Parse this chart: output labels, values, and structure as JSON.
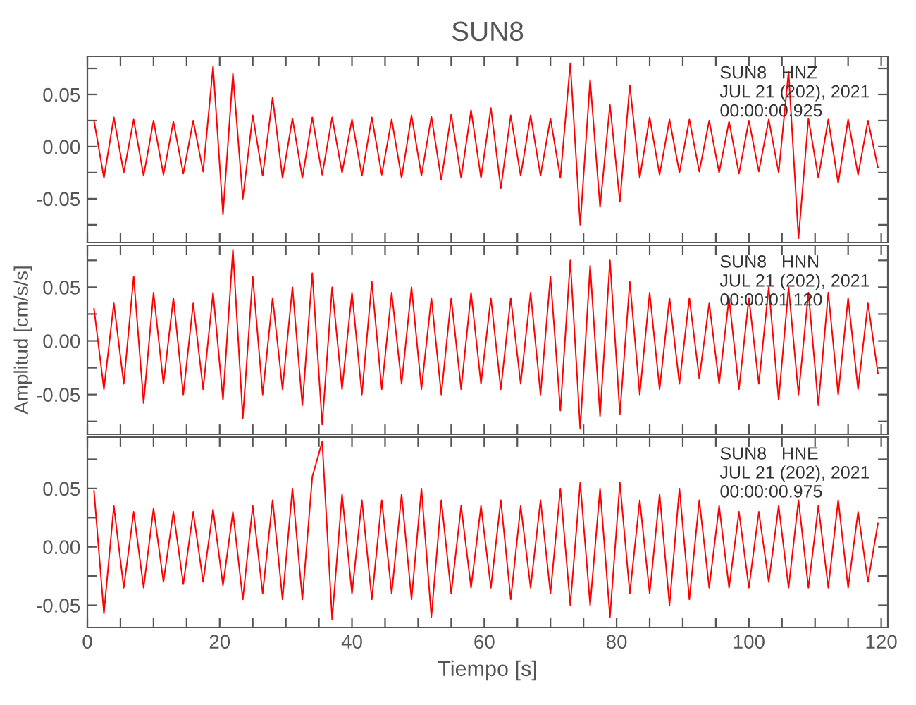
{
  "chart_data": [
    {
      "type": "line",
      "title": "SUN8",
      "annotations": [
        "SUN8   HNZ\nJUL 21 (202), 2021\n00:00:00.925"
      ],
      "tick_labels": "y",
      "xlim": [
        0,
        121
      ],
      "ylim": [
        -0.092,
        0.0865
      ],
      "xticks": [
        {
          "value": 0,
          "label": null
        },
        {
          "value": 5,
          "label": null
        },
        {
          "value": 10,
          "label": null
        },
        {
          "value": 15,
          "label": null
        },
        {
          "value": 20,
          "label": null
        },
        {
          "value": 25,
          "label": null
        },
        {
          "value": 30,
          "label": null
        },
        {
          "value": 35,
          "label": null
        },
        {
          "value": 40,
          "label": null
        },
        {
          "value": 45,
          "label": null
        },
        {
          "value": 50,
          "label": null
        },
        {
          "value": 55,
          "label": null
        },
        {
          "value": 60,
          "label": null
        },
        {
          "value": 65,
          "label": null
        },
        {
          "value": 70,
          "label": null
        },
        {
          "value": 75,
          "label": null
        },
        {
          "value": 80,
          "label": null
        },
        {
          "value": 85,
          "label": null
        },
        {
          "value": 90,
          "label": null
        },
        {
          "value": 95,
          "label": null
        },
        {
          "value": 100,
          "label": null
        },
        {
          "value": 105,
          "label": null
        },
        {
          "value": 110,
          "label": null
        },
        {
          "value": 115,
          "label": null
        },
        {
          "value": 120,
          "label": null
        }
      ],
      "yticks": [
        {
          "value": -0.075,
          "label": null
        },
        {
          "value": -0.05,
          "label": "-0.05"
        },
        {
          "value": -0.025,
          "label": null
        },
        {
          "value": 0,
          "label": "0.00"
        },
        {
          "value": 0.025,
          "label": null
        },
        {
          "value": 0.05,
          "label": "0.05"
        },
        {
          "value": 0.075,
          "label": null
        }
      ],
      "series": [
        {
          "color": "#ff0000",
          "x": [
            1,
            2.5,
            4,
            5.5,
            7,
            8.5,
            10,
            11.5,
            13,
            14.5,
            16,
            17.5,
            19,
            20.5,
            22,
            23.5,
            25,
            26.5,
            28,
            29.5,
            31,
            32.5,
            34,
            35.5,
            37,
            38.5,
            40,
            41.5,
            43,
            44.5,
            46,
            47.5,
            49,
            50.5,
            52,
            53.5,
            55,
            56.5,
            58,
            59.5,
            61,
            62.5,
            64,
            65.5,
            67,
            68.5,
            70,
            71.5,
            73,
            74.5,
            76,
            77.5,
            79,
            80.5,
            82,
            83.5,
            85,
            86.5,
            88,
            89.5,
            91,
            92.5,
            94,
            95.5,
            97,
            98.5,
            100,
            101.5,
            103,
            104.5,
            106,
            107.5,
            109,
            110.5,
            112,
            113.5,
            115,
            116.5,
            118,
            119.5
          ],
          "values": [
            0.025,
            -0.03,
            0.028,
            -0.025,
            0.026,
            -0.028,
            0.025,
            -0.027,
            0.024,
            -0.026,
            0.025,
            -0.024,
            0.077,
            -0.065,
            0.07,
            -0.05,
            0.03,
            -0.028,
            0.047,
            -0.03,
            0.027,
            -0.03,
            0.028,
            -0.027,
            0.028,
            -0.025,
            0.026,
            -0.028,
            0.028,
            -0.027,
            0.026,
            -0.03,
            0.03,
            -0.028,
            0.029,
            -0.032,
            0.031,
            -0.03,
            0.035,
            -0.03,
            0.037,
            -0.04,
            0.03,
            -0.028,
            0.03,
            -0.028,
            0.027,
            -0.03,
            0.08,
            -0.075,
            0.064,
            -0.058,
            0.04,
            -0.053,
            0.059,
            -0.03,
            0.028,
            -0.027,
            0.026,
            -0.025,
            0.026,
            -0.024,
            0.025,
            -0.025,
            0.024,
            -0.026,
            0.025,
            -0.024,
            0.026,
            -0.025,
            0.072,
            -0.088,
            0.027,
            -0.03,
            0.026,
            -0.035,
            0.026,
            -0.027,
            0.025,
            -0.02
          ]
        }
      ]
    },
    {
      "type": "line",
      "ylabel": "Amplitud [cm/s/s]",
      "annotations": [
        "SUN8   HNN\nJUL 21 (202), 2021\n00:00:01.120"
      ],
      "tick_labels": "y",
      "xlim": [
        0,
        121
      ],
      "ylim": [
        -0.087,
        0.089
      ],
      "xticks": [
        {
          "value": 0,
          "label": null
        },
        {
          "value": 5,
          "label": null
        },
        {
          "value": 10,
          "label": null
        },
        {
          "value": 15,
          "label": null
        },
        {
          "value": 20,
          "label": null
        },
        {
          "value": 25,
          "label": null
        },
        {
          "value": 30,
          "label": null
        },
        {
          "value": 35,
          "label": null
        },
        {
          "value": 40,
          "label": null
        },
        {
          "value": 45,
          "label": null
        },
        {
          "value": 50,
          "label": null
        },
        {
          "value": 55,
          "label": null
        },
        {
          "value": 60,
          "label": null
        },
        {
          "value": 65,
          "label": null
        },
        {
          "value": 70,
          "label": null
        },
        {
          "value": 75,
          "label": null
        },
        {
          "value": 80,
          "label": null
        },
        {
          "value": 85,
          "label": null
        },
        {
          "value": 90,
          "label": null
        },
        {
          "value": 95,
          "label": null
        },
        {
          "value": 100,
          "label": null
        },
        {
          "value": 105,
          "label": null
        },
        {
          "value": 110,
          "label": null
        },
        {
          "value": 115,
          "label": null
        },
        {
          "value": 120,
          "label": null
        }
      ],
      "yticks": [
        {
          "value": -0.075,
          "label": null
        },
        {
          "value": -0.05,
          "label": "-0.05"
        },
        {
          "value": -0.025,
          "label": null
        },
        {
          "value": 0,
          "label": "0.00"
        },
        {
          "value": 0.025,
          "label": null
        },
        {
          "value": 0.05,
          "label": "0.05"
        },
        {
          "value": 0.075,
          "label": null
        }
      ],
      "series": [
        {
          "color": "#ff0000",
          "x": [
            1,
            2.5,
            4,
            5.5,
            7,
            8.5,
            10,
            11.5,
            13,
            14.5,
            16,
            17.5,
            19,
            20.5,
            22,
            23.5,
            25,
            26.5,
            28,
            29.5,
            31,
            32.5,
            34,
            35.5,
            37,
            38.5,
            40,
            41.5,
            43,
            44.5,
            46,
            47.5,
            49,
            50.5,
            52,
            53.5,
            55,
            56.5,
            58,
            59.5,
            61,
            62.5,
            64,
            65.5,
            67,
            68.5,
            70,
            71.5,
            73,
            74.5,
            76,
            77.5,
            79,
            80.5,
            82,
            83.5,
            85,
            86.5,
            88,
            89.5,
            91,
            92.5,
            94,
            95.5,
            97,
            98.5,
            100,
            101.5,
            103,
            104.5,
            106,
            107.5,
            109,
            110.5,
            112,
            113.5,
            115,
            116.5,
            118,
            119.5
          ],
          "values": [
            0.03,
            -0.045,
            0.035,
            -0.04,
            0.06,
            -0.058,
            0.045,
            -0.04,
            0.04,
            -0.05,
            0.035,
            -0.045,
            0.045,
            -0.055,
            0.085,
            -0.072,
            0.06,
            -0.05,
            0.04,
            -0.045,
            0.05,
            -0.06,
            0.063,
            -0.078,
            0.05,
            -0.045,
            0.045,
            -0.05,
            0.055,
            -0.045,
            0.045,
            -0.04,
            0.05,
            -0.045,
            0.04,
            -0.05,
            0.04,
            -0.045,
            0.045,
            -0.04,
            0.04,
            -0.045,
            0.04,
            -0.04,
            0.045,
            -0.05,
            0.06,
            -0.065,
            0.075,
            -0.082,
            0.07,
            -0.07,
            0.075,
            -0.068,
            0.055,
            -0.05,
            0.045,
            -0.045,
            0.04,
            -0.04,
            0.04,
            -0.035,
            0.035,
            -0.04,
            0.04,
            -0.045,
            0.04,
            -0.04,
            0.05,
            -0.055,
            0.05,
            -0.05,
            0.045,
            -0.06,
            0.045,
            -0.05,
            0.04,
            -0.045,
            0.035,
            -0.03
          ]
        }
      ]
    },
    {
      "type": "line",
      "xlabel": "Tiempo [s]",
      "annotations": [
        "SUN8   HNE\nJUL 21 (202), 2021\n00:00:00.975"
      ],
      "xlim": [
        0,
        121
      ],
      "ylim": [
        -0.069,
        0.094
      ],
      "xticks": [
        0,
        {
          "value": 5,
          "label": null
        },
        {
          "value": 10,
          "label": null
        },
        {
          "value": 15,
          "label": null
        },
        20,
        {
          "value": 25,
          "label": null
        },
        {
          "value": 30,
          "label": null
        },
        {
          "value": 35,
          "label": null
        },
        40,
        {
          "value": 45,
          "label": null
        },
        {
          "value": 50,
          "label": null
        },
        {
          "value": 55,
          "label": null
        },
        60,
        {
          "value": 65,
          "label": null
        },
        {
          "value": 70,
          "label": null
        },
        {
          "value": 75,
          "label": null
        },
        80,
        {
          "value": 85,
          "label": null
        },
        {
          "value": 90,
          "label": null
        },
        {
          "value": 95,
          "label": null
        },
        100,
        {
          "value": 105,
          "label": null
        },
        {
          "value": 110,
          "label": null
        },
        {
          "value": 115,
          "label": null
        },
        120
      ],
      "yticks": [
        {
          "value": -0.05,
          "label": "-0.05"
        },
        {
          "value": -0.025,
          "label": null
        },
        {
          "value": 0,
          "label": "0.00"
        },
        {
          "value": 0.025,
          "label": null
        },
        {
          "value": 0.05,
          "label": "0.05"
        },
        {
          "value": 0.075,
          "label": null
        }
      ],
      "series": [
        {
          "color": "#ff0000",
          "x": [
            1,
            2.5,
            4,
            5.5,
            7,
            8.5,
            10,
            11.5,
            13,
            14.5,
            16,
            17.5,
            19,
            20.5,
            22,
            23.5,
            25,
            26.5,
            28,
            29.5,
            31,
            32.5,
            34,
            35.5,
            37,
            38.5,
            40,
            41.5,
            43,
            44.5,
            46,
            47.5,
            49,
            50.5,
            52,
            53.5,
            55,
            56.5,
            58,
            59.5,
            61,
            62.5,
            64,
            65.5,
            67,
            68.5,
            70,
            71.5,
            73,
            74.5,
            76,
            77.5,
            79,
            80.5,
            82,
            83.5,
            85,
            86.5,
            88,
            89.5,
            91,
            92.5,
            94,
            95.5,
            97,
            98.5,
            100,
            101.5,
            103,
            104.5,
            106,
            107.5,
            109,
            110.5,
            112,
            113.5,
            115,
            116.5,
            118,
            119.5
          ],
          "values": [
            0.048,
            -0.057,
            0.035,
            -0.035,
            0.03,
            -0.035,
            0.033,
            -0.03,
            0.03,
            -0.032,
            0.03,
            -0.03,
            0.032,
            -0.033,
            0.03,
            -0.045,
            0.035,
            -0.04,
            0.04,
            -0.045,
            0.05,
            -0.045,
            0.06,
            0.09,
            -0.062,
            0.045,
            -0.04,
            0.04,
            -0.045,
            0.04,
            -0.04,
            0.045,
            -0.045,
            0.05,
            -0.06,
            0.04,
            -0.04,
            0.035,
            -0.035,
            0.035,
            -0.035,
            0.04,
            -0.045,
            0.035,
            -0.035,
            0.04,
            -0.04,
            0.05,
            -0.05,
            0.055,
            -0.05,
            0.05,
            -0.06,
            0.055,
            -0.04,
            0.04,
            -0.04,
            0.045,
            -0.05,
            0.05,
            -0.045,
            0.04,
            -0.035,
            0.035,
            -0.035,
            0.03,
            -0.035,
            0.03,
            -0.03,
            0.035,
            -0.035,
            0.04,
            -0.035,
            0.035,
            -0.035,
            0.04,
            -0.035,
            0.03,
            -0.03,
            0.02
          ]
        }
      ]
    }
  ]
}
